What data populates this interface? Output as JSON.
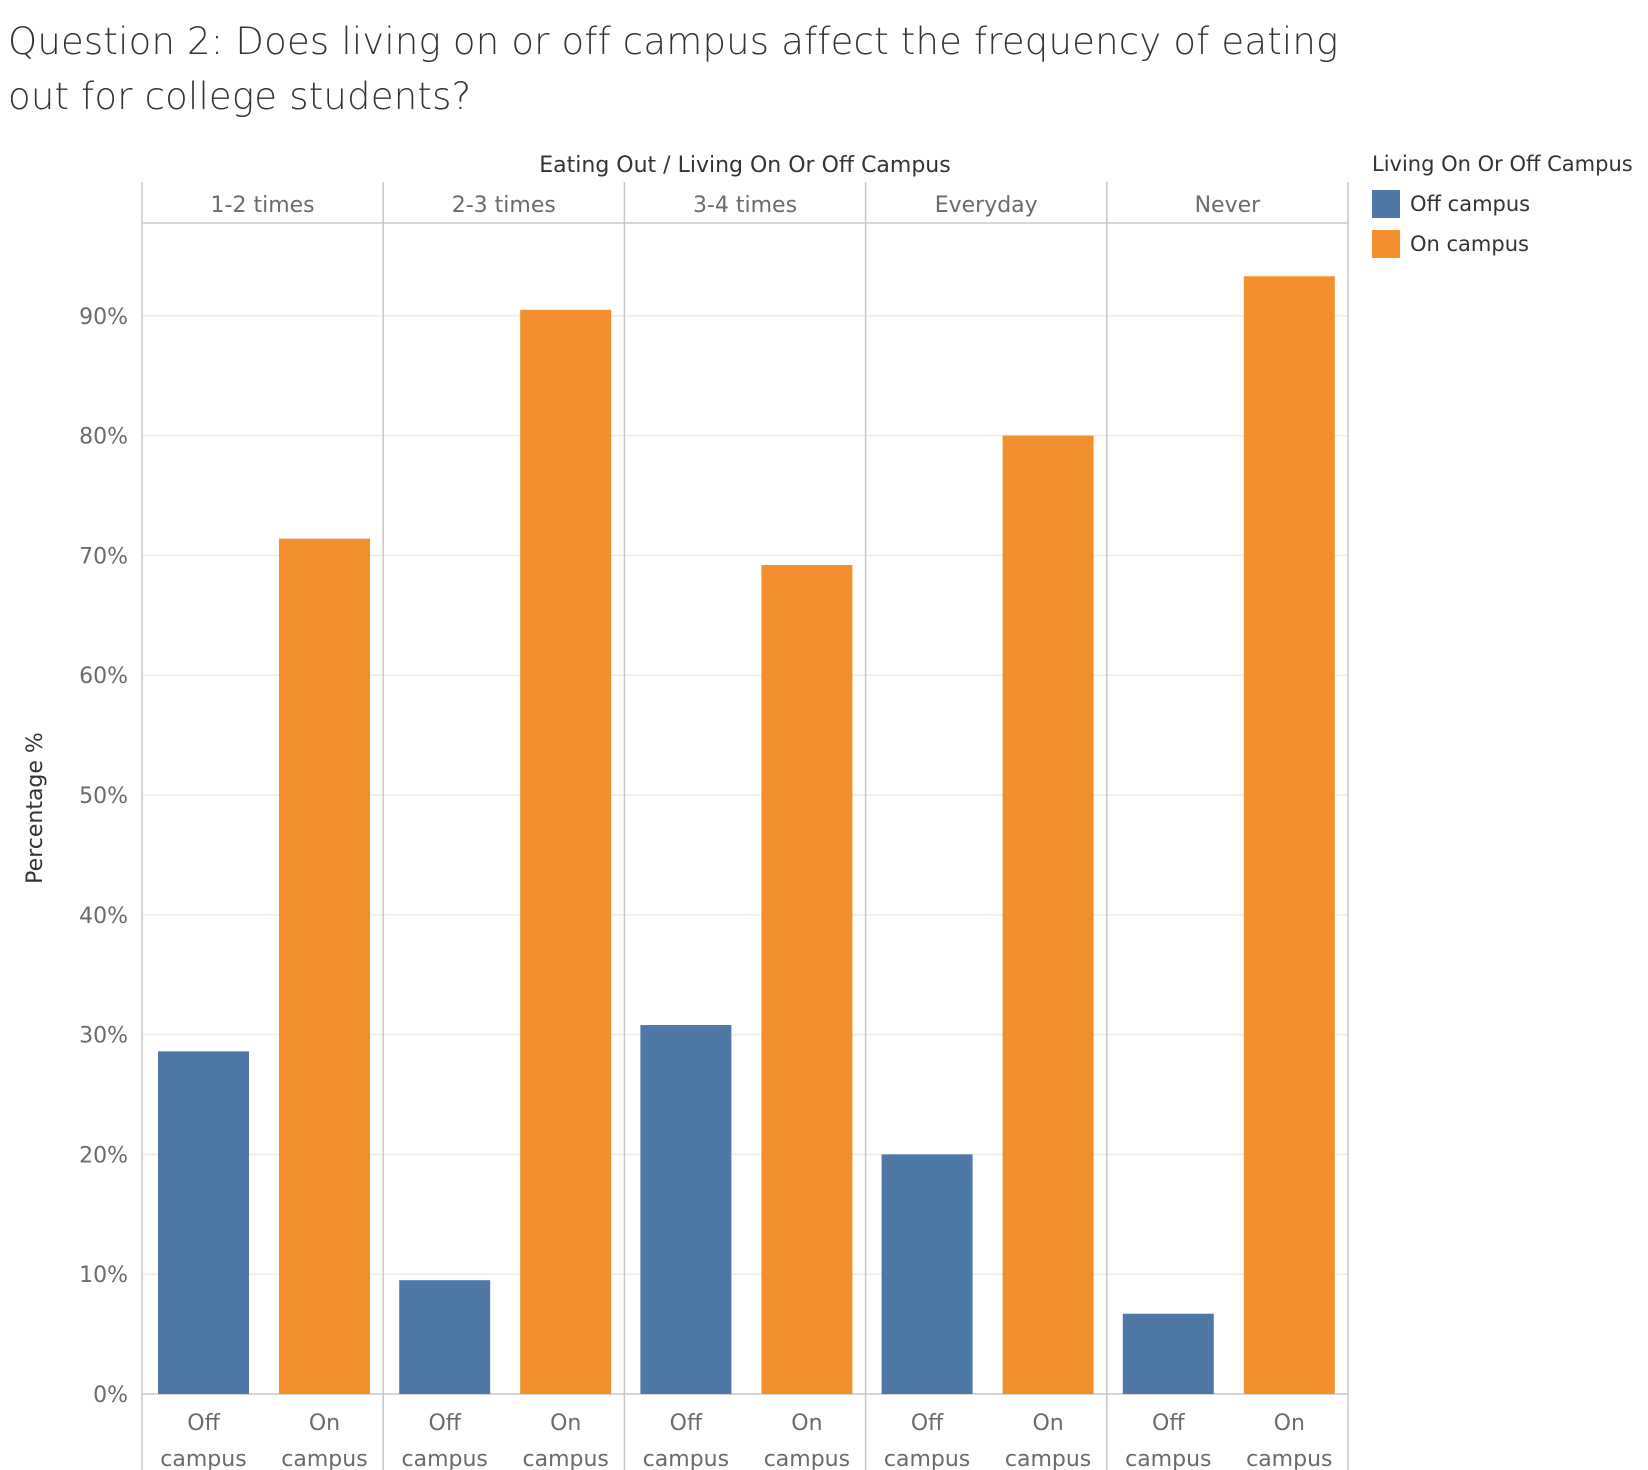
{
  "title": "Question 2: Does living on or off campus affect the frequency of eating out for college students?",
  "chart_data": {
    "type": "bar",
    "header_left": "Eating Out",
    "header_sep": "/",
    "header_right": "Living On Or Off Campus",
    "ylabel": "Percentage %",
    "ylim": [
      0,
      100
    ],
    "yticks": [
      "0%",
      "10%",
      "20%",
      "30%",
      "40%",
      "50%",
      "60%",
      "70%",
      "80%",
      "90%"
    ],
    "grid": true,
    "legend_position": "top-right",
    "groups": [
      "1-2 times",
      "2-3 times",
      "3-4 times",
      "Everyday",
      "Never"
    ],
    "category_labels": [
      [
        "Off",
        "campus"
      ],
      [
        "On",
        "campus"
      ]
    ],
    "series": [
      {
        "name": "Off campus",
        "color": "#4e79a7",
        "values": [
          28.6,
          9.5,
          30.8,
          20.0,
          6.7
        ]
      },
      {
        "name": "On campus",
        "color": "#f28e2b",
        "values": [
          71.4,
          90.5,
          69.2,
          80.0,
          93.3
        ]
      }
    ]
  },
  "legend": {
    "title": "Living On Or Off Campus",
    "items": [
      {
        "label": "Off campus",
        "color": "#4e79a7"
      },
      {
        "label": "On campus",
        "color": "#f28e2b"
      }
    ]
  }
}
